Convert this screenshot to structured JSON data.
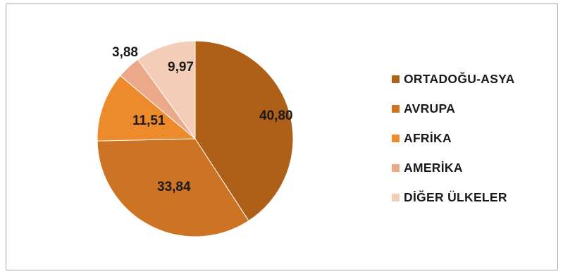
{
  "chart_data": {
    "type": "pie",
    "categories": [
      "ORTADOĞU-ASYA",
      "AVRUPA",
      "AFRİKA",
      "AMERİKA",
      "DİĞER ÜLKELER"
    ],
    "values": [
      40.8,
      33.84,
      11.51,
      3.88,
      9.97
    ],
    "value_labels": [
      "40,80",
      "33,84",
      "11,51",
      "3,88",
      "9,97"
    ],
    "colors": [
      "#ae5f18",
      "#cc7424",
      "#ec8a2c",
      "#eca98a",
      "#f4cdb9"
    ],
    "start_angle": "12 o'clock",
    "direction": "clockwise",
    "legend_position": "right"
  }
}
